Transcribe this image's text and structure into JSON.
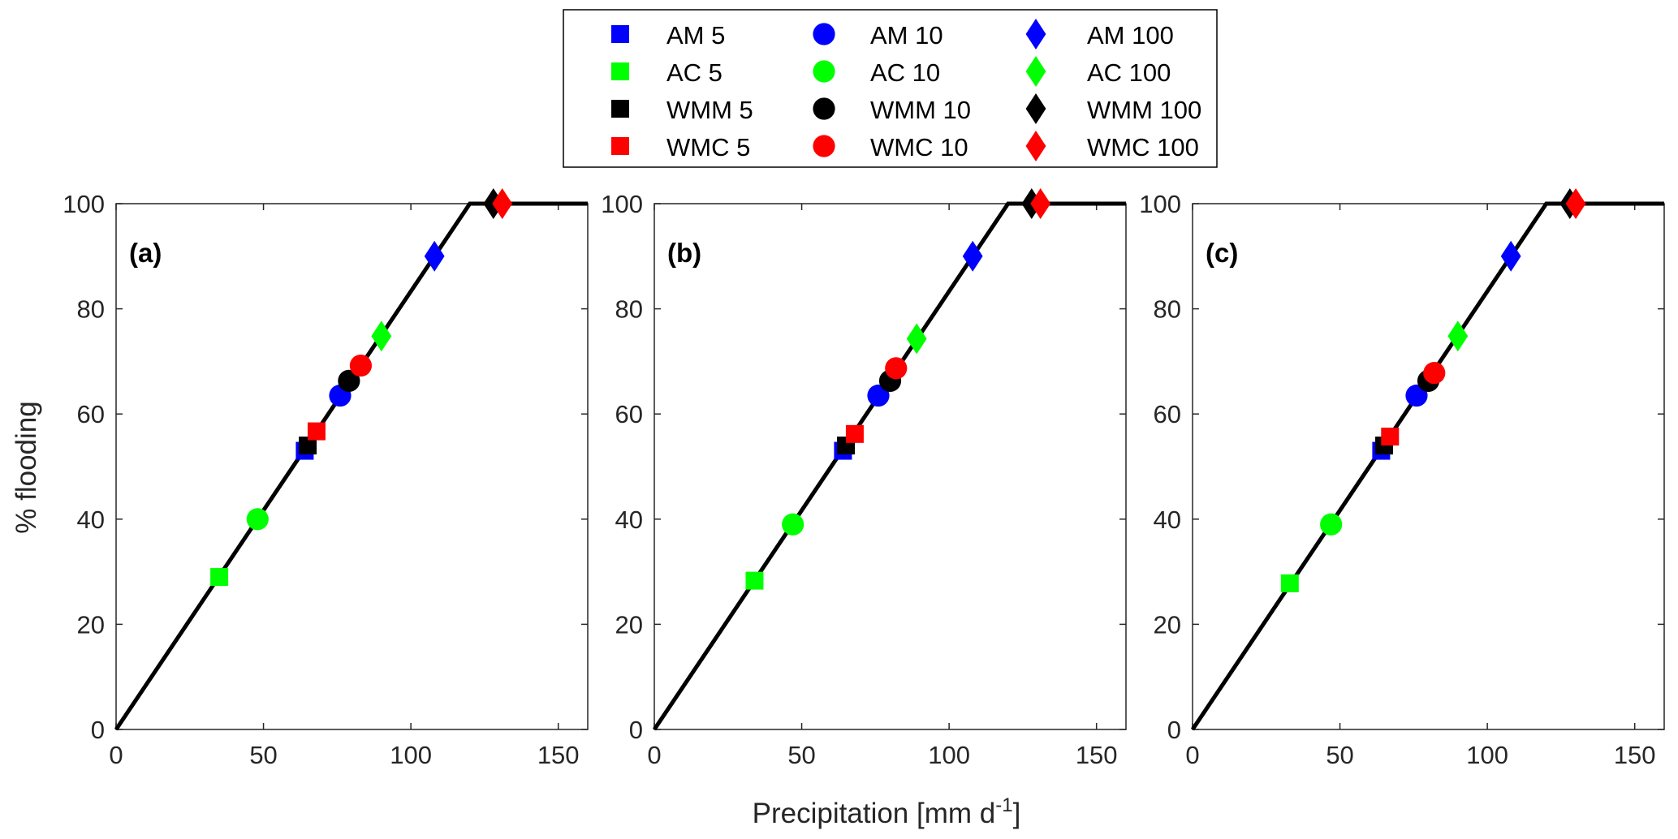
{
  "figure": {
    "xlabel_main": "Precipitation [mm d",
    "xlabel_sup": "-1",
    "xlabel_end": "]",
    "ylabel": "% flooding"
  },
  "legend": {
    "entries": [
      {
        "label": "AM 5",
        "marker": "square",
        "color": "#0000ff"
      },
      {
        "label": "AC 5",
        "marker": "square",
        "color": "#00ff00"
      },
      {
        "label": "WMM 5",
        "marker": "square",
        "color": "#000000"
      },
      {
        "label": "WMC 5",
        "marker": "square",
        "color": "#ff0000"
      },
      {
        "label": "AM 10",
        "marker": "circle",
        "color": "#0000ff"
      },
      {
        "label": "AC 10",
        "marker": "circle",
        "color": "#00ff00"
      },
      {
        "label": "WMM 10",
        "marker": "circle",
        "color": "#000000"
      },
      {
        "label": "WMC 10",
        "marker": "circle",
        "color": "#ff0000"
      },
      {
        "label": "AM 100",
        "marker": "diamond",
        "color": "#0000ff"
      },
      {
        "label": "AC 100",
        "marker": "diamond",
        "color": "#00ff00"
      },
      {
        "label": "WMM 100",
        "marker": "diamond",
        "color": "#000000"
      },
      {
        "label": "WMC 100",
        "marker": "diamond",
        "color": "#ff0000"
      }
    ]
  },
  "chart_data": [
    {
      "type": "scatter",
      "panel_label": "(a)",
      "xlabel": "Precipitation [mm d-1]",
      "ylabel": "% flooding",
      "xlim": [
        0,
        160
      ],
      "ylim": [
        0,
        100
      ],
      "xticks": [
        0,
        50,
        100,
        150
      ],
      "yticks": [
        0,
        20,
        40,
        60,
        80,
        100
      ],
      "curve": {
        "x": [
          0,
          120,
          160
        ],
        "y": [
          0,
          100,
          100
        ]
      },
      "points": [
        {
          "label": "AM 5",
          "x": 64,
          "y": 53
        },
        {
          "label": "AC 5",
          "x": 35,
          "y": 29
        },
        {
          "label": "WMM 5",
          "x": 65,
          "y": 54
        },
        {
          "label": "WMC 5",
          "x": 68,
          "y": 56.7
        },
        {
          "label": "AM 10",
          "x": 76,
          "y": 63.5
        },
        {
          "label": "AC 10",
          "x": 48,
          "y": 40
        },
        {
          "label": "WMM 10",
          "x": 79,
          "y": 66.3
        },
        {
          "label": "WMC 10",
          "x": 83,
          "y": 69.2
        },
        {
          "label": "AM 100",
          "x": 108,
          "y": 90
        },
        {
          "label": "AC 100",
          "x": 90,
          "y": 74.8
        },
        {
          "label": "WMM 100",
          "x": 128,
          "y": 100
        },
        {
          "label": "WMC 100",
          "x": 131,
          "y": 100
        }
      ]
    },
    {
      "type": "scatter",
      "panel_label": "(b)",
      "xlabel": "Precipitation [mm d-1]",
      "ylabel": "% flooding",
      "xlim": [
        0,
        160
      ],
      "ylim": [
        0,
        100
      ],
      "xticks": [
        0,
        50,
        100,
        150
      ],
      "yticks": [
        0,
        20,
        40,
        60,
        80,
        100
      ],
      "curve": {
        "x": [
          0,
          120,
          160
        ],
        "y": [
          0,
          100,
          100
        ]
      },
      "points": [
        {
          "label": "AM 5",
          "x": 64,
          "y": 53
        },
        {
          "label": "AC 5",
          "x": 34,
          "y": 28.3
        },
        {
          "label": "WMM 5",
          "x": 65,
          "y": 54
        },
        {
          "label": "WMC 5",
          "x": 68,
          "y": 56.2
        },
        {
          "label": "AM 10",
          "x": 76,
          "y": 63.5
        },
        {
          "label": "AC 10",
          "x": 47,
          "y": 39
        },
        {
          "label": "WMM 10",
          "x": 80,
          "y": 66.3
        },
        {
          "label": "WMC 10",
          "x": 82,
          "y": 68.7
        },
        {
          "label": "AM 100",
          "x": 108,
          "y": 90
        },
        {
          "label": "AC 100",
          "x": 89,
          "y": 74.3
        },
        {
          "label": "WMM 100",
          "x": 128,
          "y": 100
        },
        {
          "label": "WMC 100",
          "x": 131,
          "y": 100
        }
      ]
    },
    {
      "type": "scatter",
      "panel_label": "(c)",
      "xlabel": "Precipitation [mm d-1]",
      "ylabel": "% flooding",
      "xlim": [
        0,
        160
      ],
      "ylim": [
        0,
        100
      ],
      "xticks": [
        0,
        50,
        100,
        150
      ],
      "yticks": [
        0,
        20,
        40,
        60,
        80,
        100
      ],
      "curve": {
        "x": [
          0,
          120,
          160
        ],
        "y": [
          0,
          100,
          100
        ]
      },
      "points": [
        {
          "label": "AM 5",
          "x": 64,
          "y": 53
        },
        {
          "label": "AC 5",
          "x": 33,
          "y": 27.8
        },
        {
          "label": "WMM 5",
          "x": 65,
          "y": 54
        },
        {
          "label": "WMC 5",
          "x": 67,
          "y": 55.7
        },
        {
          "label": "AM 10",
          "x": 76,
          "y": 63.5
        },
        {
          "label": "AC 10",
          "x": 47,
          "y": 39
        },
        {
          "label": "WMM 10",
          "x": 80,
          "y": 66.3
        },
        {
          "label": "WMC 10",
          "x": 82,
          "y": 67.8
        },
        {
          "label": "AM 100",
          "x": 108,
          "y": 90
        },
        {
          "label": "AC 100",
          "x": 90,
          "y": 74.8
        },
        {
          "label": "WMM 100",
          "x": 128,
          "y": 100
        },
        {
          "label": "WMC 100",
          "x": 130,
          "y": 100
        }
      ]
    }
  ]
}
